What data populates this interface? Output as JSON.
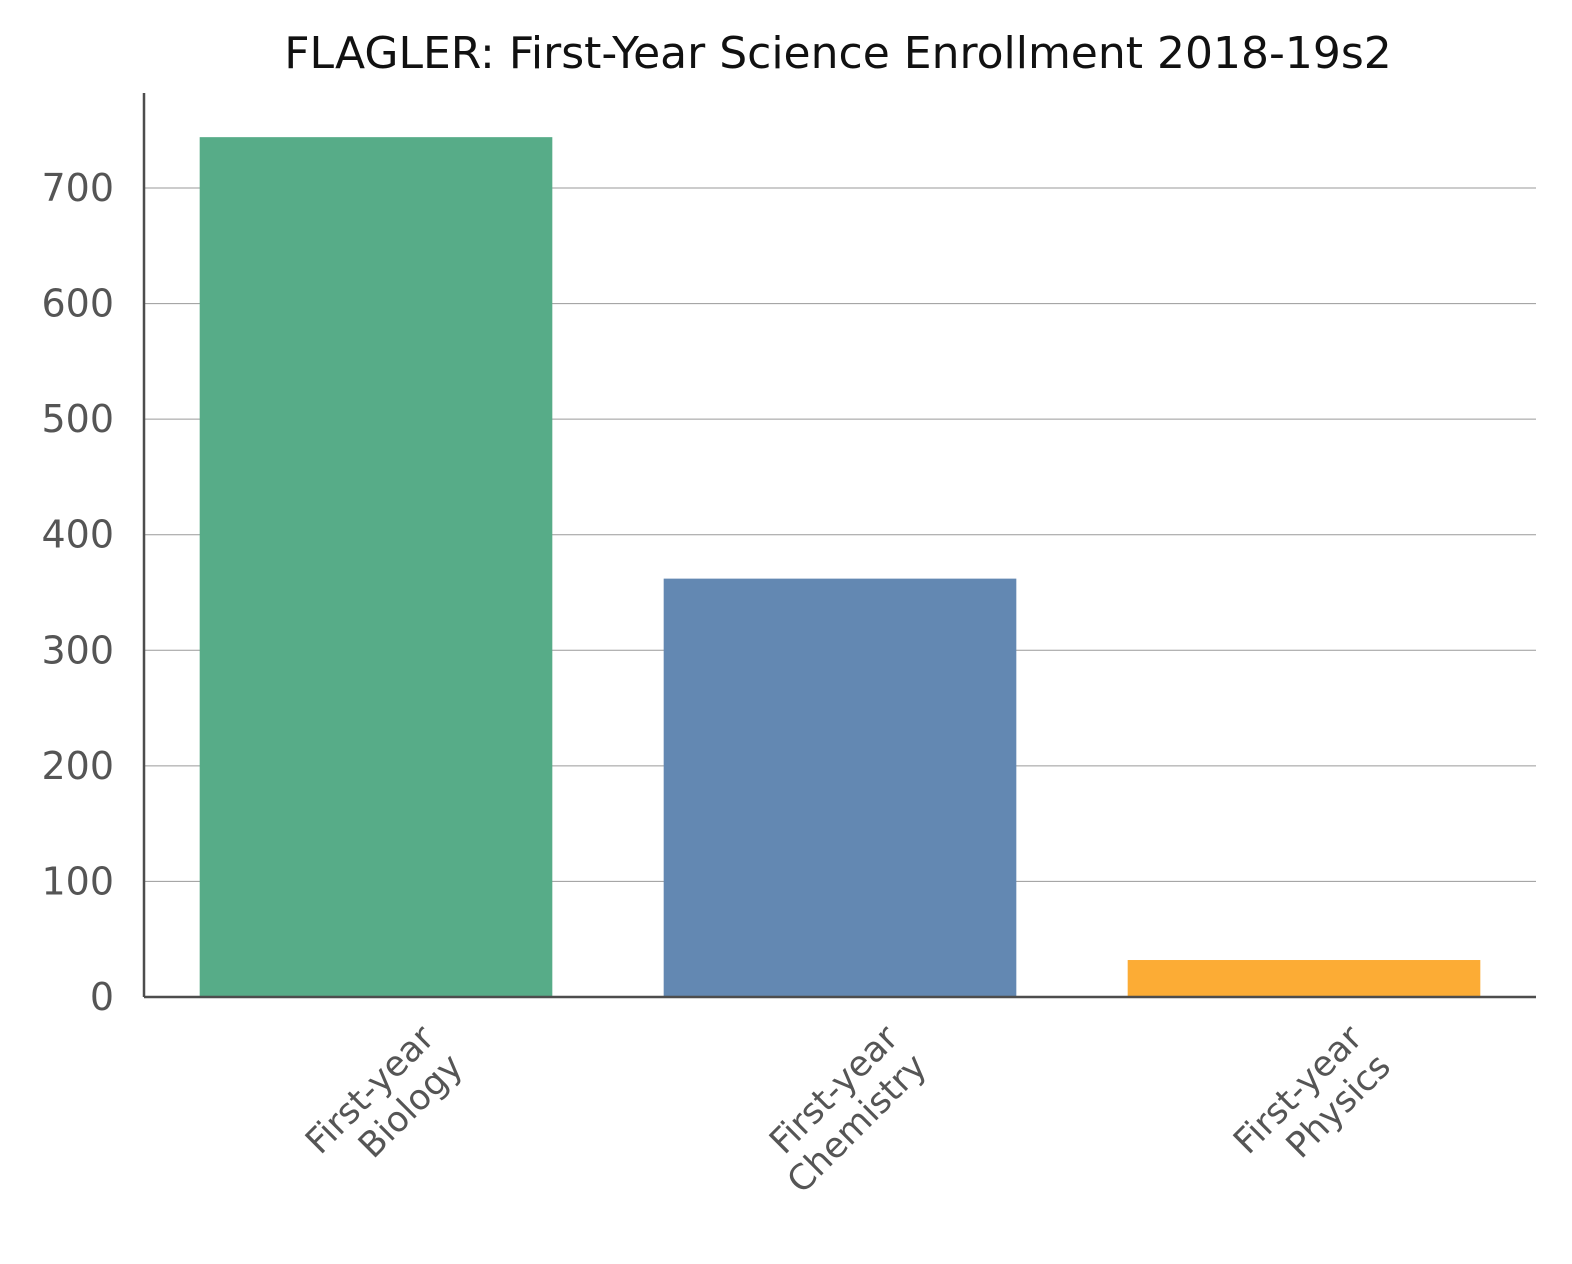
{
  "chart_data": {
    "type": "bar",
    "title": "FLAGLER: First-Year Science Enrollment 2018-19s2",
    "xlabel": "",
    "ylabel": "",
    "categories": [
      [
        "First-year",
        "Biology"
      ],
      [
        "First-year",
        "Chemistry"
      ],
      [
        "First-year",
        "Physics"
      ]
    ],
    "values": [
      744,
      362,
      32
    ],
    "colors": [
      "#57ac88",
      "#6388b2",
      "#fcac35"
    ],
    "ylim": [
      0,
      780
    ],
    "yticks": [
      0,
      100,
      200,
      300,
      400,
      500,
      600,
      700
    ],
    "grid": true,
    "legend": "none"
  }
}
